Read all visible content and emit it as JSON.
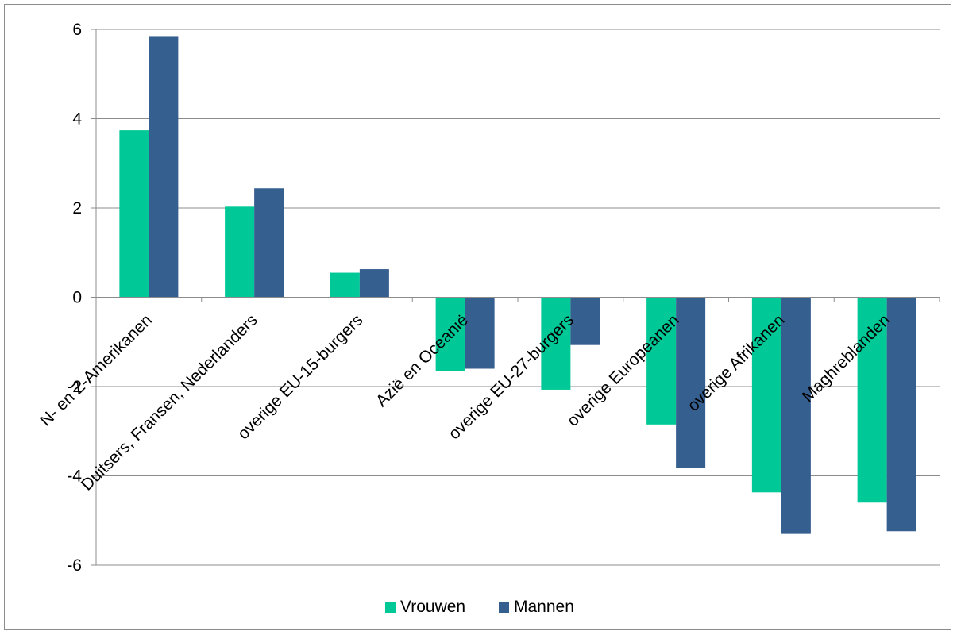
{
  "chart_data": {
    "type": "bar",
    "title": "",
    "xlabel": "",
    "ylabel": "",
    "ylim": [
      -6,
      6
    ],
    "yticks": [
      -6,
      -4,
      -2,
      0,
      2,
      4,
      6
    ],
    "grid": true,
    "legend_position": "bottom",
    "categories": [
      "N- en Z-Amerikanen",
      "Duitsers, Fransen, Nederlanders",
      "overige EU-15-burgers",
      "Azië en Oceanië",
      "overige EU-27-burgers",
      "overige Europeanen",
      "overige Afrikanen",
      "Maghreblanden"
    ],
    "series": [
      {
        "name": "Vrouwen",
        "color": "#00c896",
        "values": [
          3.74,
          2.03,
          0.55,
          -1.65,
          -2.07,
          -2.85,
          -4.37,
          -4.6
        ]
      },
      {
        "name": "Mannen",
        "color": "#355f8f",
        "values": [
          5.85,
          2.44,
          0.63,
          -1.6,
          -1.07,
          -3.82,
          -5.3,
          -5.24
        ]
      }
    ]
  }
}
